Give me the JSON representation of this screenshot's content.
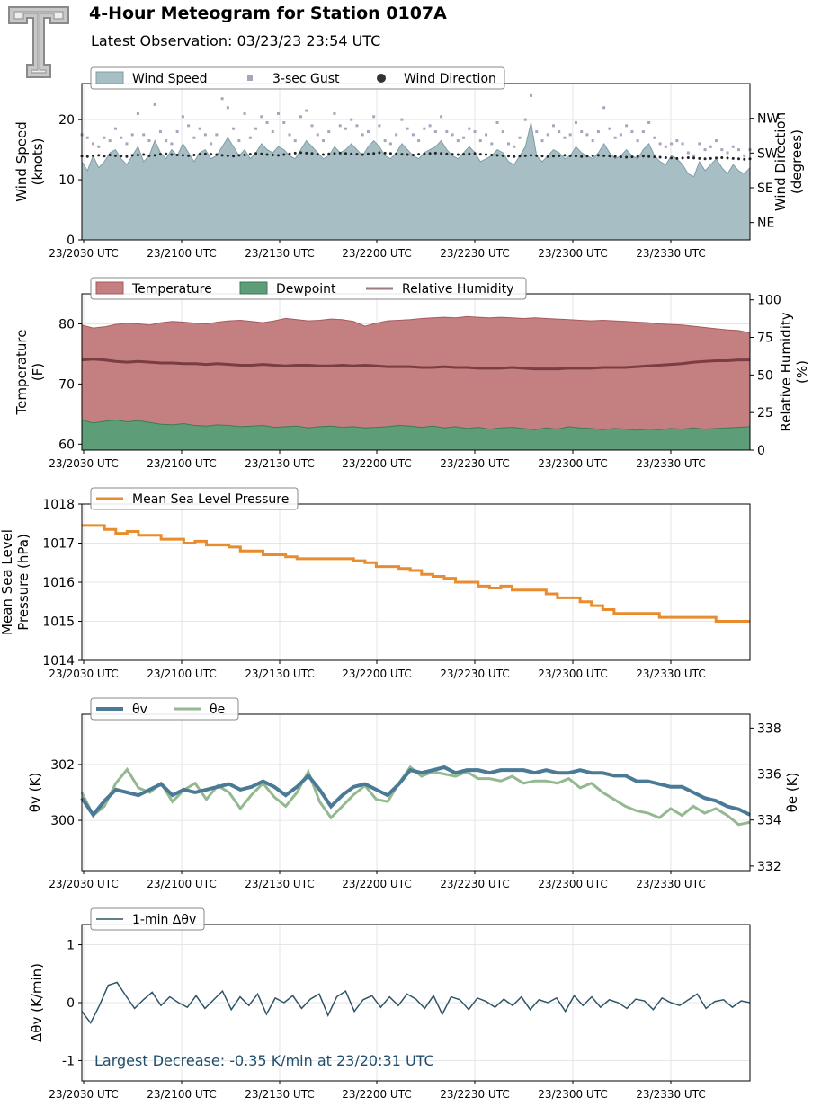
{
  "header": {
    "title": "4-Hour Meteogram for Station 0107A",
    "subtitle": "Latest Observation: 03/23/23 23:54 UTC"
  },
  "colors": {
    "wind_fill": "#a7bfc4",
    "wind_line": "#7e9ea6",
    "gust": "#a8a4be",
    "direction": "#222222",
    "temperature": "#c47f81",
    "temperature_line": "#a85a5e",
    "dewpoint": "#5d9e79",
    "dewpoint_line": "#3f7a56",
    "rh": "#7a3e42",
    "pressure": "#e88c2f",
    "theta_v": "#4a7a96",
    "theta_e": "#94b990",
    "dtheta": "#2f5567",
    "annotation": "#1f4e6c",
    "grid": "#e6e6e6"
  },
  "chart_data": [
    {
      "type": "area",
      "panel": "wind",
      "xlabel_ticks": [
        "23/2030 UTC",
        "23/2100 UTC",
        "23/2130 UTC",
        "23/2200 UTC",
        "23/2230 UTC",
        "23/2300 UTC",
        "23/2330 UTC"
      ],
      "ylabel": "Wind Speed\n(knots)",
      "ylim": [
        0,
        26
      ],
      "yticks": [
        0,
        10,
        20
      ],
      "ylabel_right": "Wind Direction\n(degrees)",
      "right_ticks": [
        "NE",
        "SE",
        "SW",
        "NW"
      ],
      "right_lim": [
        0,
        405
      ],
      "legend": [
        "Wind Speed",
        "3-sec Gust",
        "Wind Direction"
      ],
      "legend_placement": "top-left",
      "series": [
        {
          "name": "Wind Speed",
          "values": [
            13.0,
            11.5,
            14.0,
            12.0,
            13.0,
            14.5,
            15.0,
            13.5,
            12.5,
            14.0,
            15.5,
            13.0,
            14.0,
            16.5,
            14.5,
            13.5,
            15.0,
            14.0,
            16.0,
            14.5,
            13.0,
            14.5,
            15.0,
            13.5,
            14.0,
            15.5,
            17.0,
            15.5,
            14.0,
            15.0,
            13.5,
            14.5,
            16.0,
            15.0,
            14.5,
            15.5,
            15.0,
            14.0,
            13.5,
            15.0,
            16.5,
            15.5,
            14.5,
            13.5,
            14.0,
            15.5,
            14.5,
            15.0,
            16.0,
            15.0,
            14.0,
            15.5,
            16.5,
            15.5,
            14.0,
            13.5,
            14.5,
            16.0,
            15.0,
            14.0,
            13.5,
            14.5,
            15.0,
            15.5,
            16.5,
            15.0,
            14.0,
            13.5,
            14.5,
            15.5,
            14.5,
            13.0,
            13.5,
            14.0,
            15.0,
            14.5,
            13.0,
            12.5,
            14.0,
            15.5,
            19.5,
            14.0,
            13.0,
            14.0,
            15.0,
            14.5,
            13.5,
            14.0,
            15.5,
            14.5,
            14.0,
            13.5,
            14.5,
            16.0,
            14.5,
            13.5,
            14.0,
            15.0,
            14.0,
            13.5,
            15.0,
            16.0,
            14.0,
            13.0,
            12.5,
            14.0,
            13.5,
            12.5,
            11.0,
            10.5,
            13.0,
            11.5,
            12.5,
            13.5,
            12.0,
            11.0,
            12.5,
            11.5,
            11.0,
            12.0
          ]
        },
        {
          "name": "3-sec Gust",
          "values": [
            17.5,
            17.0,
            16.0,
            15.5,
            17.0,
            16.5,
            18.5,
            17.0,
            16.0,
            17.5,
            21.0,
            17.5,
            16.5,
            22.5,
            18.0,
            16.5,
            16.0,
            18.0,
            20.5,
            19.0,
            17.0,
            18.5,
            17.5,
            16.0,
            17.5,
            23.5,
            22.0,
            18.5,
            16.5,
            21.0,
            17.0,
            18.5,
            20.5,
            19.5,
            18.0,
            21.0,
            19.5,
            17.5,
            16.5,
            20.5,
            21.5,
            19.0,
            17.5,
            16.5,
            18.0,
            21.0,
            19.0,
            18.5,
            20.0,
            19.0,
            17.5,
            18.0,
            20.5,
            19.0,
            16.5,
            16.0,
            17.5,
            20.0,
            18.5,
            17.5,
            16.5,
            18.5,
            19.0,
            18.0,
            20.5,
            18.0,
            17.5,
            16.5,
            17.0,
            18.5,
            18.0,
            16.5,
            17.5,
            16.0,
            19.5,
            18.0,
            16.0,
            15.5,
            17.0,
            20.0,
            24.0,
            18.0,
            16.5,
            17.5,
            19.0,
            18.0,
            17.0,
            17.5,
            19.5,
            18.0,
            17.5,
            16.5,
            18.0,
            22.0,
            18.5,
            17.0,
            17.5,
            19.0,
            18.0,
            16.5,
            18.0,
            19.5,
            17.0,
            16.0,
            15.5,
            16.0,
            16.5,
            16.0,
            14.5,
            14.0,
            16.0,
            15.0,
            15.5,
            16.5,
            15.0,
            14.5,
            15.5,
            15.0,
            14.0,
            15.0
          ]
        },
        {
          "name": "Wind Direction",
          "values": [
            217,
            216,
            218,
            219,
            217,
            220,
            218,
            217,
            216,
            219,
            220,
            221,
            218,
            219,
            222,
            223,
            221,
            220,
            219,
            218,
            220,
            222,
            223,
            222,
            221,
            219,
            218,
            217,
            219,
            220,
            222,
            224,
            223,
            221,
            220,
            219,
            221,
            223,
            225,
            226,
            225,
            224,
            222,
            221,
            223,
            224,
            225,
            224,
            223,
            222,
            221,
            223,
            224,
            226,
            225,
            224,
            223,
            222,
            221,
            220,
            222,
            223,
            224,
            225,
            224,
            223,
            222,
            221,
            222,
            223,
            224,
            222,
            221,
            220,
            219,
            218,
            217,
            216,
            217,
            218,
            219,
            218,
            217,
            216,
            217,
            218,
            219,
            218,
            217,
            216,
            217,
            218,
            219,
            218,
            217,
            216,
            215,
            214,
            215,
            216,
            217,
            216,
            215,
            214,
            213,
            212,
            211,
            212,
            213,
            212,
            211,
            210,
            211,
            212,
            213,
            212,
            211,
            210,
            209,
            210
          ]
        }
      ]
    },
    {
      "type": "area",
      "panel": "thermo",
      "xlabel_ticks": [
        "23/2030 UTC",
        "23/2100 UTC",
        "23/2130 UTC",
        "23/2200 UTC",
        "23/2230 UTC",
        "23/2300 UTC",
        "23/2330 UTC"
      ],
      "ylabel": "Temperature\n(F)",
      "ylim": [
        59,
        85
      ],
      "yticks": [
        60,
        70,
        80
      ],
      "ylabel_right": "Relative Humidity\n(%)",
      "right_lim": [
        0,
        104
      ],
      "right_ticks": [
        0,
        25,
        50,
        75,
        100
      ],
      "legend": [
        "Temperature",
        "Dewpoint",
        "Relative Humidity"
      ],
      "legend_placement": "top-left",
      "series": [
        {
          "name": "Temperature",
          "values": [
            79.8,
            79.3,
            79.5,
            79.9,
            80.1,
            80.0,
            79.8,
            80.2,
            80.4,
            80.3,
            80.1,
            80.0,
            80.3,
            80.5,
            80.6,
            80.4,
            80.2,
            80.5,
            80.9,
            80.7,
            80.5,
            80.6,
            80.8,
            80.7,
            80.4,
            79.6,
            80.1,
            80.5,
            80.6,
            80.7,
            80.9,
            81.0,
            81.1,
            81.0,
            81.2,
            81.1,
            81.0,
            81.1,
            81.0,
            80.9,
            81.0,
            80.9,
            80.8,
            80.7,
            80.6,
            80.5,
            80.6,
            80.5,
            80.4,
            80.3,
            80.2,
            80.0,
            79.9,
            79.8,
            79.6,
            79.4,
            79.2,
            79.0,
            78.9,
            78.5
          ]
        },
        {
          "name": "Dewpoint",
          "values": [
            64.0,
            63.5,
            63.8,
            64.0,
            63.7,
            63.9,
            63.6,
            63.3,
            63.2,
            63.4,
            63.1,
            63.0,
            63.2,
            63.1,
            62.9,
            63.0,
            63.1,
            62.8,
            62.9,
            63.0,
            62.7,
            62.9,
            63.0,
            62.8,
            62.9,
            62.7,
            62.8,
            62.9,
            63.1,
            63.0,
            62.8,
            63.0,
            62.7,
            62.9,
            62.6,
            62.8,
            62.5,
            62.7,
            62.8,
            62.6,
            62.4,
            62.7,
            62.5,
            62.9,
            62.7,
            62.6,
            62.4,
            62.6,
            62.5,
            62.3,
            62.5,
            62.4,
            62.6,
            62.5,
            62.7,
            62.5,
            62.6,
            62.7,
            62.8,
            62.9
          ]
        },
        {
          "name": "Relative Humidity",
          "values": [
            60,
            60.5,
            60,
            59,
            58.5,
            59,
            58.5,
            58,
            58,
            57.5,
            57.5,
            57,
            57.5,
            57,
            56.5,
            56.5,
            57,
            56.5,
            56,
            56.5,
            56.5,
            56,
            56,
            56.5,
            56,
            56.5,
            56,
            55.5,
            55.5,
            55.5,
            55,
            55,
            55.5,
            55,
            55,
            54.5,
            54.5,
            54.5,
            55,
            54.5,
            54,
            54,
            54,
            54.5,
            54.5,
            54.5,
            55,
            55,
            55,
            55.5,
            56,
            56.5,
            57,
            57.5,
            58.5,
            59,
            59.5,
            59.5,
            60,
            60
          ]
        }
      ]
    },
    {
      "type": "line",
      "panel": "pressure",
      "xlabel_ticks": [
        "23/2030 UTC",
        "23/2100 UTC",
        "23/2130 UTC",
        "23/2200 UTC",
        "23/2230 UTC",
        "23/2300 UTC",
        "23/2330 UTC"
      ],
      "ylabel": "Mean Sea Level\nPressure (hPa)",
      "ylim": [
        1014,
        1018
      ],
      "yticks": [
        1014,
        1015,
        1016,
        1017,
        1018
      ],
      "legend": [
        "Mean Sea Level Pressure"
      ],
      "legend_placement": "top-left",
      "series": [
        {
          "name": "Mean Sea Level Pressure",
          "values": [
            1017.45,
            1017.45,
            1017.35,
            1017.25,
            1017.3,
            1017.2,
            1017.2,
            1017.1,
            1017.1,
            1017.0,
            1017.05,
            1016.95,
            1016.95,
            1016.9,
            1016.8,
            1016.8,
            1016.7,
            1016.7,
            1016.65,
            1016.6,
            1016.6,
            1016.6,
            1016.6,
            1016.6,
            1016.55,
            1016.5,
            1016.4,
            1016.4,
            1016.35,
            1016.3,
            1016.2,
            1016.15,
            1016.1,
            1016.0,
            1016.0,
            1015.9,
            1015.85,
            1015.9,
            1015.8,
            1015.8,
            1015.8,
            1015.7,
            1015.6,
            1015.6,
            1015.5,
            1015.4,
            1015.3,
            1015.2,
            1015.2,
            1015.2,
            1015.2,
            1015.1,
            1015.1,
            1015.1,
            1015.1,
            1015.1,
            1015.0,
            1015.0,
            1015.0,
            1015.0
          ]
        }
      ]
    },
    {
      "type": "line",
      "panel": "theta",
      "xlabel_ticks": [
        "23/2030 UTC",
        "23/2100 UTC",
        "23/2130 UTC",
        "23/2200 UTC",
        "23/2230 UTC",
        "23/2300 UTC",
        "23/2330 UTC"
      ],
      "ylabel": "θv (K)",
      "ylim": [
        298.2,
        303.8
      ],
      "yticks": [
        300,
        302
      ],
      "ylabel_right": "θe (K)",
      "right_lim": [
        331.8,
        338.6
      ],
      "right_ticks": [
        332,
        334,
        336,
        338
      ],
      "legend": [
        "θv",
        "θe"
      ],
      "legend_placement": "top-left",
      "series": [
        {
          "name": "θv",
          "values": [
            300.8,
            300.2,
            300.7,
            301.1,
            301.0,
            300.9,
            301.1,
            301.3,
            300.9,
            301.1,
            301.0,
            301.1,
            301.2,
            301.3,
            301.1,
            301.2,
            301.4,
            301.2,
            300.9,
            301.2,
            301.6,
            301.1,
            300.5,
            300.9,
            301.2,
            301.3,
            301.1,
            300.9,
            301.3,
            301.8,
            301.7,
            301.8,
            301.9,
            301.7,
            301.8,
            301.8,
            301.7,
            301.8,
            301.8,
            301.8,
            301.7,
            301.8,
            301.7,
            301.7,
            301.8,
            301.7,
            301.7,
            301.6,
            301.6,
            301.4,
            301.4,
            301.3,
            301.2,
            301.2,
            301.0,
            300.8,
            300.7,
            300.5,
            300.4,
            300.2
          ]
        },
        {
          "name": "θe",
          "values": [
            335.2,
            334.2,
            334.6,
            335.6,
            336.2,
            335.4,
            335.2,
            335.6,
            334.8,
            335.3,
            335.6,
            334.9,
            335.5,
            335.2,
            334.5,
            335.1,
            335.6,
            335.0,
            334.6,
            335.2,
            336.1,
            334.8,
            334.1,
            334.6,
            335.1,
            335.5,
            334.9,
            334.8,
            335.6,
            336.3,
            335.9,
            336.1,
            336.0,
            335.9,
            336.1,
            335.8,
            335.8,
            335.7,
            335.9,
            335.6,
            335.7,
            335.7,
            335.6,
            335.8,
            335.4,
            335.6,
            335.2,
            334.9,
            334.6,
            334.4,
            334.3,
            334.1,
            334.5,
            334.2,
            334.6,
            334.3,
            334.5,
            334.2,
            333.8,
            333.9
          ]
        }
      ]
    },
    {
      "type": "line",
      "panel": "dtheta",
      "xlabel_ticks": [
        "23/2030 UTC",
        "23/2100 UTC",
        "23/2130 UTC",
        "23/2200 UTC",
        "23/2230 UTC",
        "23/2300 UTC",
        "23/2330 UTC"
      ],
      "ylabel": "Δθv (K/min)",
      "ylim": [
        -1.35,
        1.35
      ],
      "yticks": [
        -1,
        0,
        1
      ],
      "legend": [
        "1-min Δθv"
      ],
      "legend_placement": "top-left",
      "annotation": "Largest Decrease: -0.35 K/min at 23/20:31 UTC",
      "series": [
        {
          "name": "1-min Δθv",
          "values": [
            -0.15,
            -0.35,
            -0.05,
            0.3,
            0.35,
            0.12,
            -0.1,
            0.05,
            0.18,
            -0.05,
            0.1,
            0.0,
            -0.08,
            0.12,
            -0.1,
            0.05,
            0.2,
            -0.12,
            0.1,
            -0.05,
            0.15,
            -0.2,
            0.08,
            0.0,
            0.12,
            -0.1,
            0.06,
            0.15,
            -0.22,
            0.1,
            0.2,
            -0.15,
            0.05,
            0.12,
            -0.08,
            0.1,
            -0.05,
            0.15,
            0.06,
            -0.1,
            0.12,
            -0.2,
            0.1,
            0.05,
            -0.12,
            0.08,
            0.02,
            -0.08,
            0.06,
            -0.05,
            0.1,
            -0.12,
            0.05,
            0.0,
            0.08,
            -0.15,
            0.12,
            -0.05,
            0.1,
            -0.08,
            0.05,
            0.0,
            -0.1,
            0.06,
            0.03,
            -0.12,
            0.08,
            0.0,
            -0.05,
            0.05,
            0.15,
            -0.1,
            0.02,
            0.05,
            -0.08,
            0.03,
            0.0
          ]
        }
      ]
    }
  ]
}
